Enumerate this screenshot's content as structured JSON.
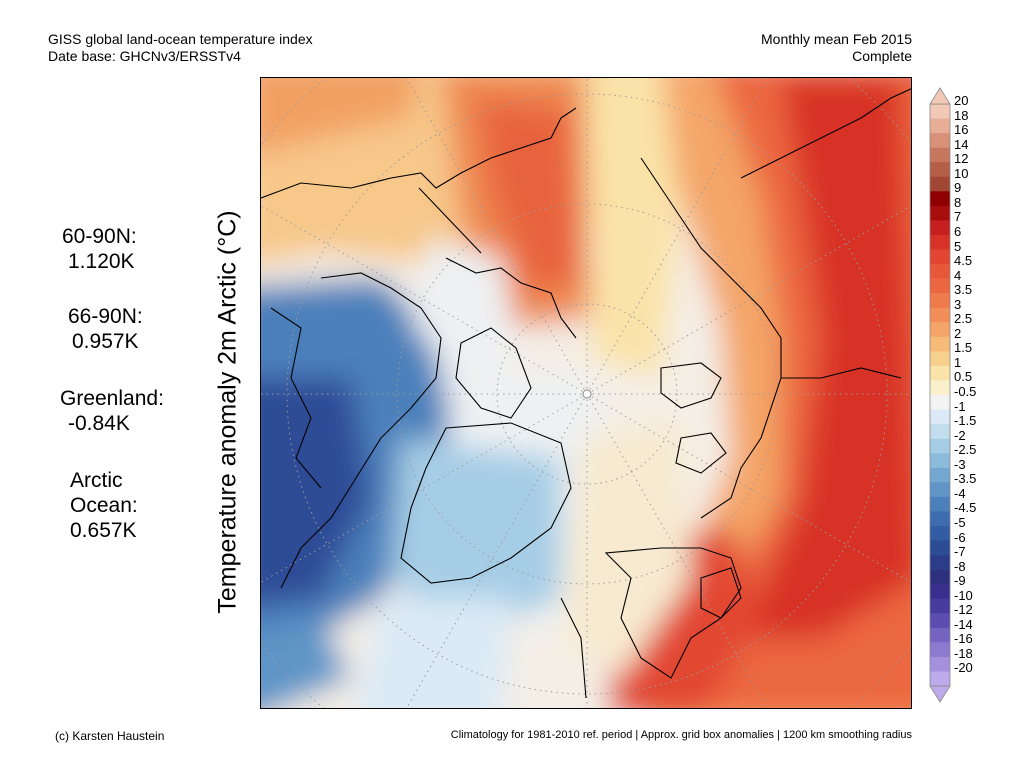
{
  "header": {
    "line1": "GISS global land-ocean temperature index",
    "line2": "Date base: GHCNv3/ERSSTv4",
    "period": "Monthly mean Feb 2015",
    "status": "Complete"
  },
  "axis_label": "Temperature anomaly 2m Arctic (°C)",
  "stats": [
    {
      "lines": [
        "60-90N:",
        "1.120K"
      ]
    },
    {
      "lines": [
        "66-90N:",
        "0.957K"
      ]
    },
    {
      "lines": [
        "Greenland:",
        "-0.84K"
      ]
    },
    {
      "lines": [
        "Arctic",
        "Ocean:",
        "0.657K"
      ]
    }
  ],
  "colorbar": {
    "labels": [
      "20",
      "18",
      "16",
      "14",
      "12",
      "10",
      "9",
      "8",
      "7",
      "6",
      "5",
      "4.5",
      "4",
      "3.5",
      "3",
      "2.5",
      "2",
      "1.5",
      "1",
      "0.5",
      "-0.5",
      "-1",
      "-1.5",
      "-2",
      "-2.5",
      "-3",
      "-3.5",
      "-4",
      "-4.5",
      "-5",
      "-6",
      "-7",
      "-8",
      "-9",
      "-10",
      "-12",
      "-14",
      "-16",
      "-18",
      "-20"
    ],
    "colors": [
      "#f2c8b6",
      "#e7ad96",
      "#d9917a",
      "#c8775f",
      "#b55e48",
      "#a14535",
      "#8e0000",
      "#a80d0d",
      "#c51f1f",
      "#d83228",
      "#e24632",
      "#e8573a",
      "#ec6741",
      "#ef7a4c",
      "#f28f59",
      "#f4a567",
      "#f6bb78",
      "#f8d08d",
      "#fae3a8",
      "#fbf0cc",
      "#f3f3f3",
      "#dbeaf6",
      "#c2ddee",
      "#a6cde6",
      "#8cbbdc",
      "#74a8d1",
      "#5f95c7",
      "#4c80bb",
      "#3d6dae",
      "#325ca3",
      "#2d4c96",
      "#2b3d8a",
      "#2e307f",
      "#3a2f8f",
      "#4a3b9f",
      "#5e4db1",
      "#7563c1",
      "#8c7ad0",
      "#a391de",
      "#bcaaea"
    ]
  },
  "footer": {
    "left": "(c) Karsten Haustein",
    "right": "Climatology for 1981-2010 ref. period | Approx. grid box anomalies | 1200 km smoothing radius"
  }
}
